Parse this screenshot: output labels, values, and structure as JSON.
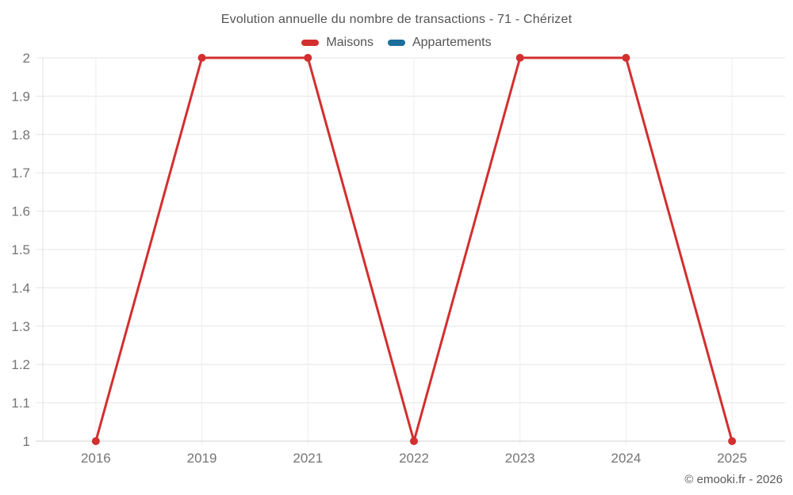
{
  "header": {
    "title": "Evolution annuelle du nombre de transactions - 71 - Chérizet"
  },
  "legend": {
    "items": [
      {
        "label": "Maisons",
        "color": "#d32f2f"
      },
      {
        "label": "Appartements",
        "color": "#1a6e9c"
      }
    ]
  },
  "footer": {
    "copyright": "© emooki.fr - 2026"
  },
  "chart_data": {
    "type": "line",
    "title": "Evolution annuelle du nombre de transactions - 71 - Chérizet",
    "categories": [
      "2016",
      "2019",
      "2021",
      "2022",
      "2023",
      "2024",
      "2025"
    ],
    "series": [
      {
        "name": "Maisons",
        "color": "#d32f2f",
        "values": [
          1,
          2,
          2,
          1,
          2,
          2,
          1
        ]
      },
      {
        "name": "Appartements",
        "color": "#1a6e9c",
        "values": []
      }
    ],
    "xlabel": "",
    "ylabel": "",
    "ylim": [
      1,
      2
    ],
    "yticks": [
      "1",
      "1.1",
      "1.2",
      "1.3",
      "1.4",
      "1.5",
      "1.6",
      "1.7",
      "1.8",
      "1.9",
      "2"
    ],
    "grid": true,
    "legend_position": "top"
  },
  "colors": {
    "grid_h": "#e6e6e6",
    "grid_v": "#ededed",
    "axis_left": "#e0e0e0",
    "axis_bottom": "#d2d2d2",
    "tick_label": "#757575"
  }
}
